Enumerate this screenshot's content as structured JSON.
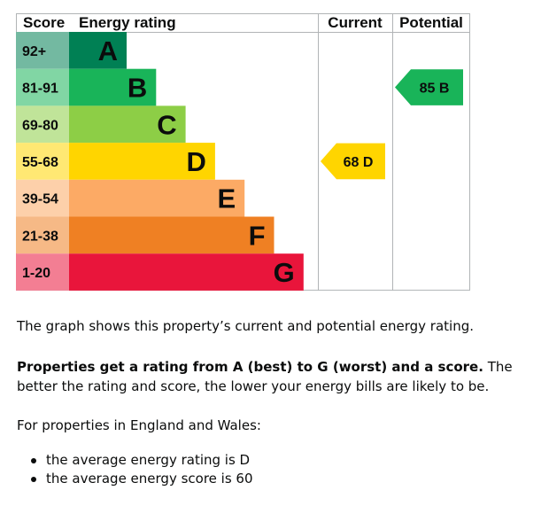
{
  "chart_data": {
    "type": "table",
    "headers": {
      "score": "Score",
      "rating": "Energy rating",
      "current": "Current",
      "potential": "Potential"
    },
    "bands": [
      {
        "letter": "A",
        "range": "92+",
        "color": "#008054"
      },
      {
        "letter": "B",
        "range": "81-91",
        "color": "#19b459"
      },
      {
        "letter": "C",
        "range": "69-80",
        "color": "#8dce46"
      },
      {
        "letter": "D",
        "range": "55-68",
        "color": "#ffd500"
      },
      {
        "letter": "E",
        "range": "39-54",
        "color": "#fcaa65"
      },
      {
        "letter": "F",
        "range": "21-38",
        "color": "#ef8023"
      },
      {
        "letter": "G",
        "range": "1-20",
        "color": "#e9153b"
      }
    ],
    "current": {
      "score": 68,
      "band": "D",
      "label": "68  D",
      "color": "#ffd500"
    },
    "potential": {
      "score": 85,
      "band": "B",
      "label": "85  B",
      "color": "#19b459"
    }
  },
  "text": {
    "intro": "The graph shows this property’s current and potential energy rating.",
    "bold": "Properties get a rating from A (best) to G (worst) and a score.",
    "rest": " The better the rating and score, the lower your energy bills are likely to be.",
    "region": "For properties in England and Wales:",
    "bullets": [
      "the average energy rating is D",
      "the average energy score is 60"
    ]
  }
}
